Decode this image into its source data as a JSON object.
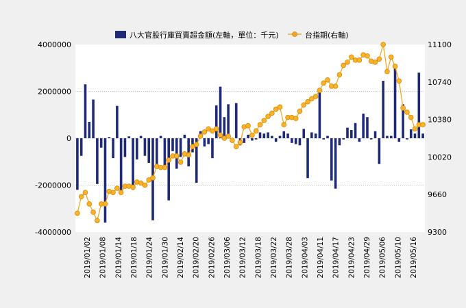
{
  "chart_data": {
    "type": "bar",
    "title": "",
    "xlabel": "",
    "ylabel": "",
    "legend_position": "top",
    "grid": true,
    "y_left": {
      "min": -4000000,
      "max": 4000000,
      "ticks": [
        -4000000,
        -2000000,
        0,
        2000000,
        4000000
      ]
    },
    "y_right": {
      "min": 9300,
      "max": 11100,
      "ticks": [
        9300,
        9660,
        10020,
        10380,
        10740,
        11100
      ]
    },
    "x_tick_labels": [
      "2019/01/02",
      "2019/01/08",
      "2019/01/14",
      "2019/01/18",
      "2019/01/24",
      "2019/01/30",
      "2019/02/14",
      "2019/02/20",
      "2019/02/26",
      "2019/03/06",
      "2019/03/12",
      "2019/03/18",
      "2019/03/22",
      "2019/03/28",
      "2019/04/03",
      "2019/04/11",
      "2019/04/17",
      "2019/04/23",
      "2019/04/29",
      "2019/05/06",
      "2019/05/10",
      "2019/05/16"
    ],
    "series": [
      {
        "name": "八大官股行庫買賣超金額(左軸，單位：千元)",
        "type": "bar",
        "axis": "left",
        "color": "#1e2a78",
        "values": [
          -2200000,
          -750000,
          2300000,
          700000,
          1650000,
          -1950000,
          -400000,
          -3600000,
          50000,
          -850000,
          1380000,
          -2300000,
          -800000,
          80000,
          -2200000,
          -900000,
          100000,
          -750000,
          -1050000,
          -3500000,
          -1300000,
          100000,
          -1200000,
          -2650000,
          -550000,
          -1300000,
          -800000,
          150000,
          -1200000,
          -600000,
          -1900000,
          300000,
          -350000,
          -250000,
          -850000,
          1400000,
          2200000,
          900000,
          1450000,
          -100000,
          1500000,
          -300000,
          -200000,
          150000,
          -100000,
          -50000,
          250000,
          200000,
          250000,
          100000,
          -150000,
          100000,
          300000,
          200000,
          -200000,
          -250000,
          -300000,
          400000,
          -1700000,
          250000,
          200000,
          2000000,
          -50000,
          100000,
          -1800000,
          -2150000,
          -300000,
          -50000,
          450000,
          350000,
          650000,
          -150000,
          1050000,
          900000,
          -50000,
          300000,
          -1100000,
          2450000,
          100000,
          100000,
          3150000,
          -150000,
          1450000,
          -50000,
          380000,
          200000,
          2800000,
          200000
        ]
      },
      {
        "name": "台指期(右軸)",
        "type": "line",
        "axis": "right",
        "color": "#f5a623",
        "values": [
          9480,
          9640,
          9680,
          9570,
          9490,
          9410,
          9570,
          9570,
          9690,
          9680,
          9720,
          9680,
          9740,
          9740,
          9730,
          9780,
          9770,
          9750,
          9800,
          9820,
          9930,
          9920,
          9920,
          9990,
          10030,
          10030,
          9970,
          10050,
          10040,
          10120,
          10140,
          10220,
          10260,
          10290,
          10270,
          10290,
          10230,
          10200,
          10220,
          10180,
          10120,
          10160,
          10310,
          10320,
          10230,
          10270,
          10330,
          10370,
          10410,
          10440,
          10480,
          10500,
          10330,
          10400,
          10400,
          10390,
          10460,
          10520,
          10550,
          10580,
          10600,
          10660,
          10730,
          10760,
          10700,
          10700,
          10810,
          10900,
          10930,
          10980,
          10950,
          10950,
          11000,
          10990,
          10940,
          10930,
          10960,
          11100,
          10840,
          10980,
          10890,
          10750,
          10490,
          10450,
          10400,
          10290,
          10330,
          10330
        ]
      }
    ]
  }
}
